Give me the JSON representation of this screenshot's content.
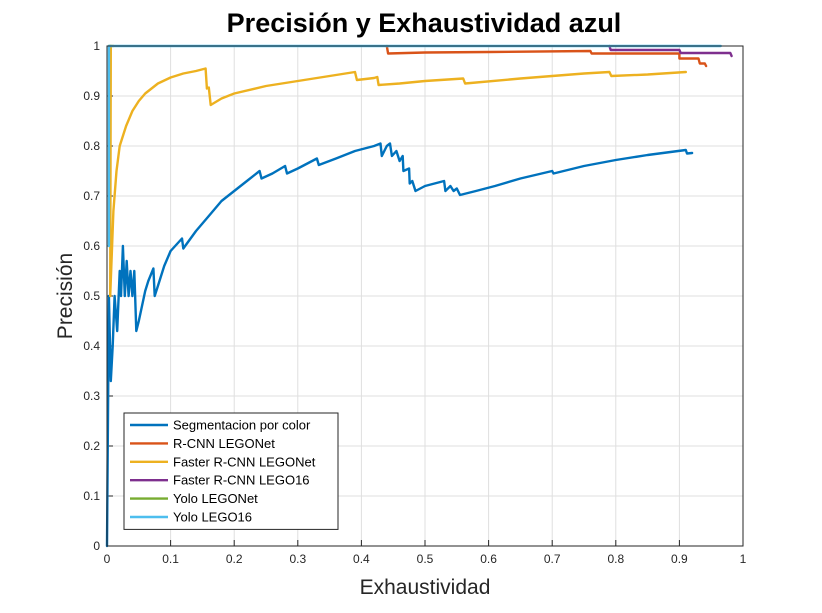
{
  "chart_data": {
    "type": "line",
    "title": "Precisión y Exhaustividad azul",
    "xlabel": "Exhaustividad",
    "ylabel": "Precisión",
    "xlim": [
      0,
      1
    ],
    "ylim": [
      0,
      1
    ],
    "xticks": [
      "0",
      "0.1",
      "0.2",
      "0.3",
      "0.4",
      "0.5",
      "0.6",
      "0.7",
      "0.8",
      "0.9",
      "1"
    ],
    "yticks": [
      "0",
      "0.1",
      "0.2",
      "0.3",
      "0.4",
      "0.5",
      "0.6",
      "0.7",
      "0.8",
      "0.9",
      "1"
    ],
    "grid": true,
    "legend_position": "bottom-left",
    "series": [
      {
        "name": "Segmentacion por color",
        "color": "#0072BD",
        "points": [
          [
            0,
            0
          ],
          [
            0.003,
            0.5
          ],
          [
            0.006,
            0.33
          ],
          [
            0.009,
            0.4
          ],
          [
            0.012,
            0.5
          ],
          [
            0.016,
            0.43
          ],
          [
            0.02,
            0.55
          ],
          [
            0.022,
            0.5
          ],
          [
            0.025,
            0.6
          ],
          [
            0.028,
            0.5
          ],
          [
            0.031,
            0.57
          ],
          [
            0.034,
            0.5
          ],
          [
            0.037,
            0.55
          ],
          [
            0.04,
            0.5
          ],
          [
            0.043,
            0.55
          ],
          [
            0.046,
            0.43
          ],
          [
            0.05,
            0.45
          ],
          [
            0.055,
            0.48
          ],
          [
            0.06,
            0.51
          ],
          [
            0.065,
            0.53
          ],
          [
            0.073,
            0.555
          ],
          [
            0.075,
            0.5
          ],
          [
            0.08,
            0.52
          ],
          [
            0.09,
            0.56
          ],
          [
            0.1,
            0.59
          ],
          [
            0.118,
            0.615
          ],
          [
            0.12,
            0.595
          ],
          [
            0.14,
            0.63
          ],
          [
            0.16,
            0.66
          ],
          [
            0.18,
            0.69
          ],
          [
            0.2,
            0.71
          ],
          [
            0.22,
            0.73
          ],
          [
            0.24,
            0.75
          ],
          [
            0.243,
            0.735
          ],
          [
            0.26,
            0.745
          ],
          [
            0.28,
            0.76
          ],
          [
            0.283,
            0.745
          ],
          [
            0.3,
            0.755
          ],
          [
            0.33,
            0.775
          ],
          [
            0.333,
            0.762
          ],
          [
            0.36,
            0.775
          ],
          [
            0.39,
            0.79
          ],
          [
            0.42,
            0.8
          ],
          [
            0.43,
            0.805
          ],
          [
            0.432,
            0.78
          ],
          [
            0.44,
            0.8
          ],
          [
            0.445,
            0.805
          ],
          [
            0.448,
            0.78
          ],
          [
            0.455,
            0.79
          ],
          [
            0.46,
            0.77
          ],
          [
            0.465,
            0.78
          ],
          [
            0.466,
            0.75
          ],
          [
            0.475,
            0.755
          ],
          [
            0.476,
            0.725
          ],
          [
            0.48,
            0.73
          ],
          [
            0.485,
            0.71
          ],
          [
            0.5,
            0.72
          ],
          [
            0.53,
            0.73
          ],
          [
            0.532,
            0.71
          ],
          [
            0.54,
            0.72
          ],
          [
            0.545,
            0.71
          ],
          [
            0.55,
            0.715
          ],
          [
            0.555,
            0.702
          ],
          [
            0.58,
            0.71
          ],
          [
            0.61,
            0.72
          ],
          [
            0.65,
            0.735
          ],
          [
            0.7,
            0.75
          ],
          [
            0.702,
            0.745
          ],
          [
            0.75,
            0.76
          ],
          [
            0.8,
            0.772
          ],
          [
            0.85,
            0.782
          ],
          [
            0.91,
            0.792
          ],
          [
            0.912,
            0.785
          ],
          [
            0.92,
            0.786
          ]
        ]
      },
      {
        "name": "R-CNN LEGONet",
        "color": "#D95319",
        "points": [
          [
            0.44,
            1
          ],
          [
            0.442,
            0.985
          ],
          [
            0.5,
            0.987
          ],
          [
            0.6,
            0.988
          ],
          [
            0.76,
            0.99
          ],
          [
            0.762,
            0.985
          ],
          [
            0.9,
            0.985
          ],
          [
            0.9,
            0.975
          ],
          [
            0.93,
            0.975
          ],
          [
            0.932,
            0.965
          ],
          [
            0.94,
            0.965
          ],
          [
            0.942,
            0.96
          ]
        ]
      },
      {
        "name": "Faster R-CNN LEGONet",
        "color": "#EDB120",
        "points": [
          [
            0.005,
            0.5
          ],
          [
            0.008,
            0.6
          ],
          [
            0.01,
            0.67
          ],
          [
            0.015,
            0.75
          ],
          [
            0.02,
            0.8
          ],
          [
            0.03,
            0.84
          ],
          [
            0.04,
            0.87
          ],
          [
            0.05,
            0.89
          ],
          [
            0.06,
            0.905
          ],
          [
            0.08,
            0.925
          ],
          [
            0.1,
            0.937
          ],
          [
            0.12,
            0.945
          ],
          [
            0.14,
            0.95
          ],
          [
            0.155,
            0.955
          ],
          [
            0.157,
            0.915
          ],
          [
            0.16,
            0.917
          ],
          [
            0.163,
            0.882
          ],
          [
            0.18,
            0.895
          ],
          [
            0.2,
            0.905
          ],
          [
            0.25,
            0.92
          ],
          [
            0.3,
            0.93
          ],
          [
            0.35,
            0.94
          ],
          [
            0.39,
            0.948
          ],
          [
            0.393,
            0.932
          ],
          [
            0.42,
            0.936
          ],
          [
            0.425,
            0.938
          ],
          [
            0.427,
            0.922
          ],
          [
            0.46,
            0.925
          ],
          [
            0.5,
            0.93
          ],
          [
            0.56,
            0.935
          ],
          [
            0.563,
            0.925
          ],
          [
            0.65,
            0.935
          ],
          [
            0.75,
            0.945
          ],
          [
            0.79,
            0.948
          ],
          [
            0.793,
            0.94
          ],
          [
            0.85,
            0.943
          ],
          [
            0.91,
            0.948
          ]
        ],
        "extra_segments": [
          [
            [
              0.005,
              0.5
            ],
            [
              0.006,
              1
            ]
          ],
          [
            [
              0.006,
              1
            ],
            [
              0.01,
              1
            ]
          ]
        ]
      },
      {
        "name": "Faster R-CNN LEGO16",
        "color": "#7E2F8E",
        "points": [
          [
            0.79,
            1
          ],
          [
            0.792,
            0.992
          ],
          [
            0.9,
            0.992
          ],
          [
            0.902,
            0.986
          ],
          [
            0.98,
            0.986
          ],
          [
            0.982,
            0.98
          ]
        ]
      },
      {
        "name": "Yolo LEGONet",
        "color": "#77AC30",
        "points": [
          [
            0.003,
            1
          ],
          [
            0.006,
            1
          ]
        ]
      },
      {
        "name": "Yolo LEGO16",
        "color": "#4DBEEE",
        "points": [
          [
            0.003,
            0.6
          ],
          [
            0.003,
            1
          ],
          [
            0.965,
            1
          ]
        ]
      }
    ]
  }
}
